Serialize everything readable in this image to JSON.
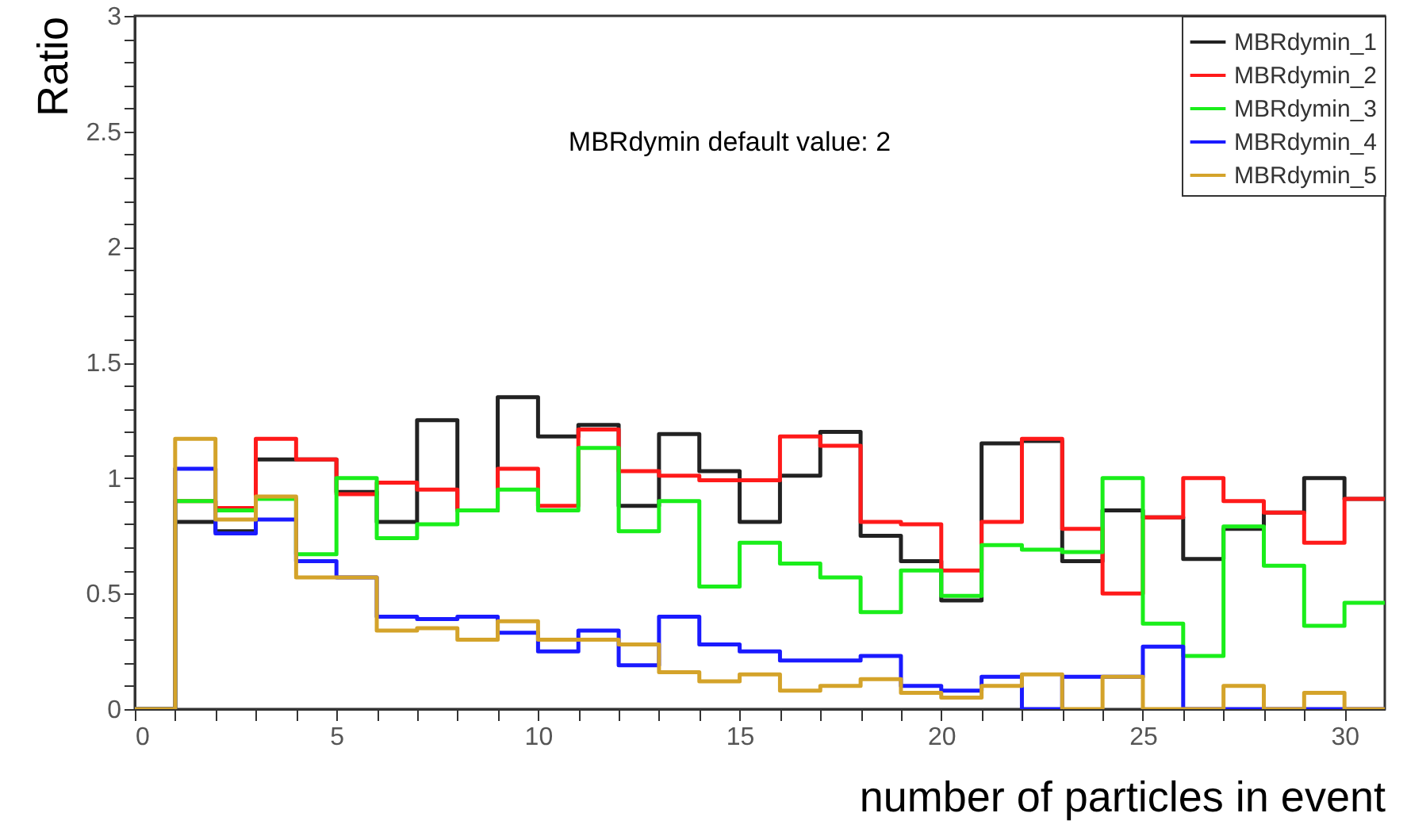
{
  "chart_data": {
    "type": "histogram",
    "xlabel": "number of particles in event",
    "ylabel": "Ratio",
    "annotations": [
      "MBRdymin default value: 2"
    ],
    "bins": [
      0,
      1,
      2,
      3,
      4,
      5,
      6,
      7,
      8,
      9,
      10,
      11,
      12,
      13,
      14,
      15,
      16,
      17,
      18,
      19,
      20,
      21,
      22,
      23,
      24,
      25,
      26,
      27,
      28,
      29,
      30,
      31
    ],
    "series": [
      {
        "name": "MBRdymin_1",
        "color": "#222222",
        "values": [
          0,
          0.81,
          0.77,
          1.08,
          1.08,
          0.94,
          0.81,
          1.25,
          0.86,
          1.35,
          1.18,
          1.23,
          0.88,
          1.19,
          1.03,
          0.81,
          1.01,
          1.2,
          0.75,
          0.64,
          0.47,
          1.15,
          1.16,
          0.64,
          0.86,
          0.83,
          0.65,
          0.78,
          0.85,
          1.0,
          0.91
        ]
      },
      {
        "name": "MBRdymin_2",
        "color": "#ff1a1a",
        "values": [
          0,
          0.9,
          0.87,
          1.17,
          1.08,
          0.93,
          0.98,
          0.95,
          0.86,
          1.04,
          0.88,
          1.21,
          1.03,
          1.01,
          0.99,
          0.99,
          1.18,
          1.14,
          0.81,
          0.8,
          0.6,
          0.81,
          1.17,
          0.78,
          0.5,
          0.83,
          1.0,
          0.9,
          0.85,
          0.72,
          0.91
        ]
      },
      {
        "name": "MBRdymin_3",
        "color": "#1aee1a",
        "values": [
          0,
          0.9,
          0.86,
          0.91,
          0.67,
          1.0,
          0.74,
          0.8,
          0.86,
          0.95,
          0.86,
          1.13,
          0.77,
          0.9,
          0.53,
          0.72,
          0.63,
          0.57,
          0.42,
          0.6,
          0.49,
          0.71,
          0.69,
          0.68,
          1.0,
          0.37,
          0.23,
          0.79,
          0.62,
          0.36,
          0.46
        ]
      },
      {
        "name": "MBRdymin_4",
        "color": "#1a1aff",
        "values": [
          0,
          1.04,
          0.76,
          0.82,
          0.64,
          0.57,
          0.4,
          0.39,
          0.4,
          0.33,
          0.25,
          0.34,
          0.19,
          0.4,
          0.28,
          0.25,
          0.21,
          0.21,
          0.23,
          0.1,
          0.08,
          0.14,
          0,
          0.14,
          0.14,
          0.27,
          0,
          0,
          0,
          0,
          0
        ]
      },
      {
        "name": "MBRdymin_5",
        "color": "#d4a32a",
        "values": [
          0,
          1.17,
          0.82,
          0.92,
          0.57,
          0.57,
          0.34,
          0.35,
          0.3,
          0.38,
          0.3,
          0.3,
          0.28,
          0.16,
          0.12,
          0.15,
          0.08,
          0.1,
          0.13,
          0.07,
          0.05,
          0.1,
          0.15,
          0,
          0.14,
          0,
          0,
          0.1,
          0,
          0.07,
          0
        ]
      }
    ],
    "xlim": [
      0,
      31
    ],
    "xticks": [
      0,
      {
        "value": 1,
        "label": null
      },
      {
        "value": 2,
        "label": null
      },
      {
        "value": 3,
        "label": null
      },
      {
        "value": 4,
        "label": null
      },
      5,
      {
        "value": 6,
        "label": null
      },
      {
        "value": 7,
        "label": null
      },
      {
        "value": 8,
        "label": null
      },
      {
        "value": 9,
        "label": null
      },
      10,
      {
        "value": 11,
        "label": null
      },
      {
        "value": 12,
        "label": null
      },
      {
        "value": 13,
        "label": null
      },
      {
        "value": 14,
        "label": null
      },
      15,
      {
        "value": 16,
        "label": null
      },
      {
        "value": 17,
        "label": null
      },
      {
        "value": 18,
        "label": null
      },
      {
        "value": 19,
        "label": null
      },
      20,
      {
        "value": 21,
        "label": null
      },
      {
        "value": 22,
        "label": null
      },
      {
        "value": 23,
        "label": null
      },
      {
        "value": 24,
        "label": null
      },
      25,
      {
        "value": 26,
        "label": null
      },
      {
        "value": 27,
        "label": null
      },
      {
        "value": 28,
        "label": null
      },
      {
        "value": 29,
        "label": null
      },
      30
    ],
    "ylim": [
      0,
      3
    ],
    "yticks": [
      0,
      {
        "value": 0.1,
        "label": null
      },
      {
        "value": 0.2,
        "label": null
      },
      {
        "value": 0.3,
        "label": null
      },
      {
        "value": 0.4,
        "label": null
      },
      0.5,
      {
        "value": 0.6,
        "label": null
      },
      {
        "value": 0.7,
        "label": null
      },
      {
        "value": 0.8,
        "label": null
      },
      {
        "value": 0.9,
        "label": null
      },
      1,
      {
        "value": 1.1,
        "label": null
      },
      {
        "value": 1.2,
        "label": null
      },
      {
        "value": 1.3,
        "label": null
      },
      {
        "value": 1.4,
        "label": null
      },
      1.5,
      {
        "value": 1.6,
        "label": null
      },
      {
        "value": 1.7,
        "label": null
      },
      {
        "value": 1.8,
        "label": null
      },
      {
        "value": 1.9,
        "label": null
      },
      2,
      {
        "value": 2.1,
        "label": null
      },
      {
        "value": 2.2,
        "label": null
      },
      {
        "value": 2.3,
        "label": null
      },
      {
        "value": 2.4,
        "label": null
      },
      2.5,
      {
        "value": 2.6,
        "label": null
      },
      {
        "value": 2.7,
        "label": null
      },
      {
        "value": 2.8,
        "label": null
      },
      {
        "value": 2.9,
        "label": null
      },
      3
    ],
    "grid": false,
    "legend": "top right"
  }
}
